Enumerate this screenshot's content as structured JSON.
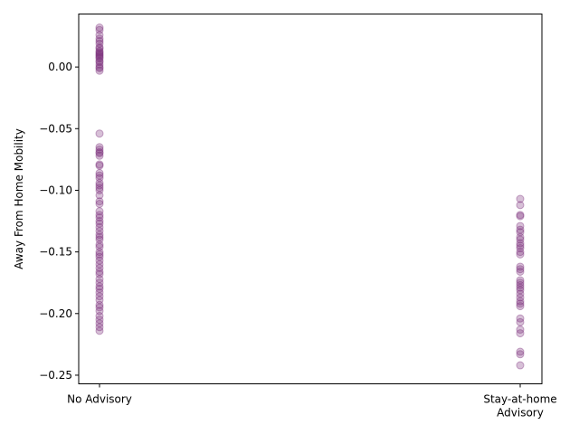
{
  "chart_data": {
    "type": "scatter",
    "title": "",
    "xlabel": "",
    "ylabel": "Away From Home Mobility",
    "categories": [
      "No Advisory",
      "Stay-at-home\nAdvisory"
    ],
    "ylim": [
      -0.257,
      0.043
    ],
    "yticks": [
      0.0,
      -0.05,
      -0.1,
      -0.15,
      -0.2,
      -0.25
    ],
    "ytick_labels": [
      "0.00",
      "−0.05",
      "−0.10",
      "−0.15",
      "−0.20",
      "−0.25"
    ],
    "grid": false,
    "legend": "none",
    "marker_color": "#7b2d7b",
    "marker_alpha": 0.3,
    "series": [
      {
        "category": "No Advisory",
        "values": [
          0.032,
          0.03,
          0.026,
          0.023,
          0.021,
          0.019,
          0.016,
          0.015,
          0.013,
          0.012,
          0.011,
          0.01,
          0.009,
          0.008,
          0.007,
          0.005,
          0.004,
          0.002,
          0.0,
          -0.001,
          -0.003,
          -0.054,
          -0.065,
          -0.067,
          -0.069,
          -0.07,
          -0.072,
          -0.079,
          -0.08,
          -0.086,
          -0.088,
          -0.09,
          -0.094,
          -0.096,
          -0.098,
          -0.1,
          -0.104,
          -0.109,
          -0.111,
          -0.117,
          -0.12,
          -0.122,
          -0.125,
          -0.127,
          -0.13,
          -0.133,
          -0.136,
          -0.138,
          -0.14,
          -0.144,
          -0.146,
          -0.15,
          -0.152,
          -0.154,
          -0.157,
          -0.16,
          -0.163,
          -0.166,
          -0.168,
          -0.172,
          -0.175,
          -0.178,
          -0.18,
          -0.183,
          -0.186,
          -0.189,
          -0.193,
          -0.195,
          -0.198,
          -0.202,
          -0.205,
          -0.208,
          -0.211,
          -0.214
        ]
      },
      {
        "category": "Stay-at-home\nAdvisory",
        "values": [
          -0.107,
          -0.112,
          -0.12,
          -0.121,
          -0.129,
          -0.132,
          -0.134,
          -0.138,
          -0.14,
          -0.143,
          -0.145,
          -0.147,
          -0.15,
          -0.152,
          -0.162,
          -0.164,
          -0.166,
          -0.173,
          -0.175,
          -0.177,
          -0.179,
          -0.181,
          -0.184,
          -0.187,
          -0.19,
          -0.192,
          -0.194,
          -0.204,
          -0.207,
          -0.213,
          -0.216,
          -0.231,
          -0.233,
          -0.242
        ]
      }
    ]
  }
}
